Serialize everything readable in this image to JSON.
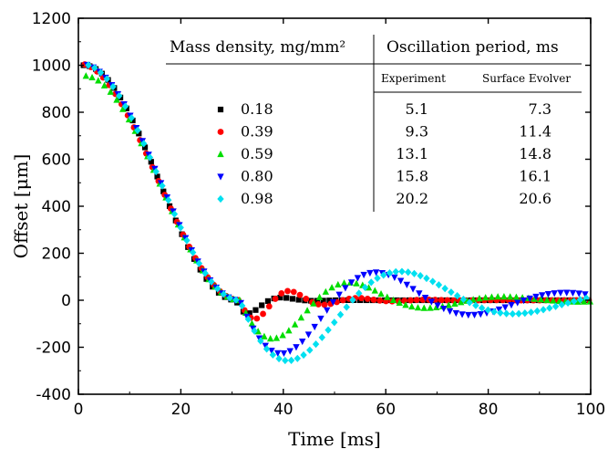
{
  "chart_data": {
    "type": "scatter",
    "xlabel": "Time [ms]",
    "ylabel": "Offset [μm]",
    "xlim": [
      0,
      100
    ],
    "ylim": [
      -400,
      1200
    ],
    "xticks": [
      0,
      20,
      40,
      60,
      80,
      100
    ],
    "yticks": [
      -400,
      -200,
      0,
      200,
      400,
      600,
      800,
      1000,
      1200
    ],
    "grid": false,
    "legend_placement": "upper-middle",
    "sample_x_start": 1,
    "sample_x_step": 1.2,
    "sample_x_end": 100,
    "series": [
      {
        "name": "0.18",
        "marker": "square",
        "color": "#000000",
        "curve": {
          "A": 1000,
          "t0": 1,
          "tf": 30.8,
          "T": 13.0,
          "tau": 4.0,
          "init": 0.0,
          "d": 0.006
        }
      },
      {
        "name": "0.39",
        "marker": "circle",
        "color": "#ff0000",
        "curve": {
          "A": 1005,
          "t0": 1,
          "tf": 31.5,
          "T": 13.4,
          "tau": 9.0,
          "init": 0.05,
          "d": 0.006
        }
      },
      {
        "name": "0.59",
        "marker": "triangle-up",
        "color": "#00dd00",
        "curve": {
          "A": 955,
          "t0": 1,
          "tf": 31.5,
          "T": 30.0,
          "tau": 17.0,
          "init": 0.0,
          "d": 0.007
        }
      },
      {
        "name": "0.80",
        "marker": "triangle-down",
        "color": "#0000ff",
        "curve": {
          "A": 1005,
          "t0": 1,
          "tf": 31.5,
          "T": 37.0,
          "tau": 26.0,
          "init": 0.02,
          "d": 0.004
        }
      },
      {
        "name": "0.98",
        "marker": "diamond",
        "color": "#00e0f0",
        "curve": {
          "A": 1005,
          "t0": 1,
          "tf": 31.5,
          "T": 44.0,
          "tau": 28.0,
          "init": 0.02,
          "d": 0.002
        }
      }
    ],
    "table": {
      "header_left": "Mass density, mg/mm²",
      "header_right": "Oscillation period, ms",
      "subheader_experiment": "Experiment",
      "subheader_simulation": "Surface Evolver",
      "rows": [
        {
          "density": "0.18",
          "experiment": "5.1",
          "simulation": "7.3"
        },
        {
          "density": "0.39",
          "experiment": "9.3",
          "simulation": "11.4"
        },
        {
          "density": "0.59",
          "experiment": "13.1",
          "simulation": "14.8"
        },
        {
          "density": "0.80",
          "experiment": "15.8",
          "simulation": "16.1"
        },
        {
          "density": "0.98",
          "experiment": "20.2",
          "simulation": "20.6"
        }
      ]
    }
  }
}
